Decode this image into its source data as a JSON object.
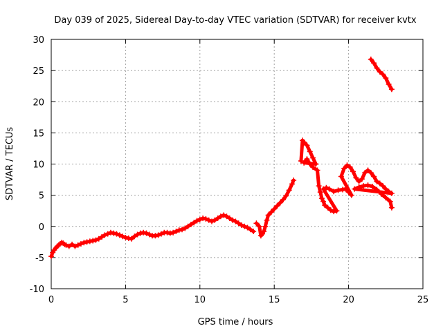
{
  "chart_data": {
    "type": "scatter",
    "title": "Day 039 of 2025, Sidereal Day-to-day VTEC variation (SDTVAR) for receiver kvtx",
    "xlabel": "GPS time / hours",
    "ylabel": "SDTVAR / TECUs",
    "xlim": [
      0,
      25
    ],
    "ylim": [
      -10,
      30
    ],
    "xticks": [
      0,
      5,
      10,
      15,
      20,
      25
    ],
    "yticks": [
      -10,
      -5,
      0,
      5,
      10,
      15,
      20,
      25,
      30
    ],
    "grid": true,
    "marker": "+",
    "color": "#ff0000",
    "series": [
      {
        "name": "main",
        "points": [
          [
            0.0,
            -4.8
          ],
          [
            0.1,
            -4.2
          ],
          [
            0.2,
            -3.8
          ],
          [
            0.3,
            -3.5
          ],
          [
            0.4,
            -3.2
          ],
          [
            0.5,
            -3.0
          ],
          [
            0.6,
            -2.8
          ],
          [
            0.7,
            -2.6
          ],
          [
            0.8,
            -2.7
          ],
          [
            0.9,
            -2.9
          ],
          [
            1.0,
            -3.0
          ],
          [
            1.2,
            -3.2
          ],
          [
            1.4,
            -2.9
          ],
          [
            1.6,
            -3.2
          ],
          [
            1.8,
            -3.0
          ],
          [
            2.0,
            -2.8
          ],
          [
            2.2,
            -2.6
          ],
          [
            2.4,
            -2.5
          ],
          [
            2.6,
            -2.4
          ],
          [
            2.8,
            -2.3
          ],
          [
            3.0,
            -2.2
          ],
          [
            3.2,
            -2.0
          ],
          [
            3.4,
            -1.7
          ],
          [
            3.6,
            -1.4
          ],
          [
            3.8,
            -1.2
          ],
          [
            4.0,
            -1.0
          ],
          [
            4.2,
            -1.1
          ],
          [
            4.4,
            -1.2
          ],
          [
            4.6,
            -1.4
          ],
          [
            4.8,
            -1.6
          ],
          [
            5.0,
            -1.8
          ],
          [
            5.2,
            -1.9
          ],
          [
            5.4,
            -2.0
          ],
          [
            5.6,
            -1.6
          ],
          [
            5.8,
            -1.3
          ],
          [
            6.0,
            -1.1
          ],
          [
            6.2,
            -1.0
          ],
          [
            6.4,
            -1.1
          ],
          [
            6.6,
            -1.3
          ],
          [
            6.8,
            -1.5
          ],
          [
            7.0,
            -1.5
          ],
          [
            7.2,
            -1.4
          ],
          [
            7.4,
            -1.2
          ],
          [
            7.6,
            -1.0
          ],
          [
            7.8,
            -1.0
          ],
          [
            8.0,
            -1.1
          ],
          [
            8.2,
            -1.0
          ],
          [
            8.4,
            -0.8
          ],
          [
            8.6,
            -0.6
          ],
          [
            8.8,
            -0.5
          ],
          [
            9.0,
            -0.3
          ],
          [
            9.2,
            0.0
          ],
          [
            9.4,
            0.3
          ],
          [
            9.6,
            0.6
          ],
          [
            9.8,
            0.9
          ],
          [
            10.0,
            1.1
          ],
          [
            10.2,
            1.3
          ],
          [
            10.4,
            1.2
          ],
          [
            10.6,
            1.0
          ],
          [
            10.8,
            0.8
          ],
          [
            11.0,
            1.0
          ],
          [
            11.2,
            1.3
          ],
          [
            11.4,
            1.6
          ],
          [
            11.6,
            1.8
          ],
          [
            11.8,
            1.6
          ],
          [
            12.0,
            1.3
          ],
          [
            12.2,
            1.0
          ],
          [
            12.4,
            0.8
          ],
          [
            12.6,
            0.5
          ],
          [
            12.8,
            0.2
          ],
          [
            13.0,
            0.0
          ],
          [
            13.2,
            -0.2
          ],
          [
            13.4,
            -0.5
          ],
          [
            13.6,
            -0.8
          ]
        ]
      },
      {
        "name": "segment-2",
        "points": [
          [
            13.8,
            0.5
          ],
          [
            14.0,
            0.0
          ],
          [
            14.1,
            -1.5
          ],
          [
            14.2,
            -1.2
          ],
          [
            14.3,
            -0.8
          ],
          [
            14.4,
            0.0
          ],
          [
            14.5,
            1.0
          ],
          [
            14.6,
            1.8
          ],
          [
            14.8,
            2.3
          ],
          [
            15.0,
            2.8
          ],
          [
            15.2,
            3.3
          ],
          [
            15.4,
            3.8
          ],
          [
            15.6,
            4.3
          ],
          [
            15.8,
            4.9
          ],
          [
            16.0,
            5.8
          ],
          [
            16.2,
            6.8
          ],
          [
            16.3,
            7.4
          ]
        ]
      },
      {
        "name": "segment-3",
        "points": [
          [
            16.8,
            10.5
          ],
          [
            16.9,
            13.8
          ],
          [
            17.0,
            13.5
          ],
          [
            17.2,
            13.0
          ],
          [
            17.4,
            12.0
          ],
          [
            17.6,
            11.0
          ],
          [
            17.8,
            10.0
          ],
          [
            17.0,
            10.2
          ],
          [
            17.2,
            10.8
          ],
          [
            17.4,
            10.0
          ],
          [
            17.6,
            9.5
          ],
          [
            17.9,
            9.0
          ],
          [
            18.0,
            6.5
          ],
          [
            18.1,
            5.5
          ],
          [
            18.2,
            4.5
          ],
          [
            18.3,
            4.0
          ],
          [
            18.4,
            3.4
          ],
          [
            18.6,
            3.0
          ],
          [
            18.8,
            2.6
          ],
          [
            19.0,
            2.4
          ],
          [
            19.2,
            2.5
          ],
          [
            18.3,
            6.0
          ],
          [
            18.5,
            6.2
          ],
          [
            18.7,
            6.0
          ],
          [
            19.0,
            5.6
          ],
          [
            19.3,
            5.8
          ],
          [
            19.6,
            5.9
          ],
          [
            19.8,
            6.0
          ],
          [
            20.0,
            5.5
          ],
          [
            20.2,
            5.0
          ],
          [
            19.5,
            8.0
          ],
          [
            19.7,
            9.3
          ],
          [
            19.9,
            9.8
          ],
          [
            20.1,
            9.5
          ],
          [
            20.3,
            8.8
          ],
          [
            20.5,
            7.8
          ],
          [
            20.7,
            7.2
          ],
          [
            20.9,
            7.6
          ],
          [
            21.1,
            8.6
          ],
          [
            21.3,
            9.0
          ],
          [
            21.5,
            8.6
          ],
          [
            21.7,
            8.0
          ],
          [
            21.9,
            7.2
          ],
          [
            22.1,
            6.9
          ],
          [
            22.3,
            6.5
          ],
          [
            22.5,
            6.0
          ],
          [
            22.7,
            5.6
          ],
          [
            22.9,
            5.3
          ],
          [
            20.4,
            6.0
          ],
          [
            20.7,
            6.3
          ],
          [
            21.0,
            6.5
          ],
          [
            21.3,
            6.6
          ],
          [
            21.6,
            6.4
          ],
          [
            21.9,
            5.9
          ],
          [
            22.2,
            5.2
          ],
          [
            22.5,
            4.6
          ],
          [
            22.8,
            4.0
          ],
          [
            22.9,
            3.0
          ]
        ]
      },
      {
        "name": "segment-4",
        "points": [
          [
            21.5,
            26.8
          ],
          [
            21.7,
            26.2
          ],
          [
            21.9,
            25.4
          ],
          [
            22.1,
            24.8
          ],
          [
            22.3,
            24.4
          ],
          [
            22.5,
            23.8
          ],
          [
            22.7,
            22.8
          ],
          [
            22.9,
            22.0
          ]
        ]
      }
    ]
  }
}
